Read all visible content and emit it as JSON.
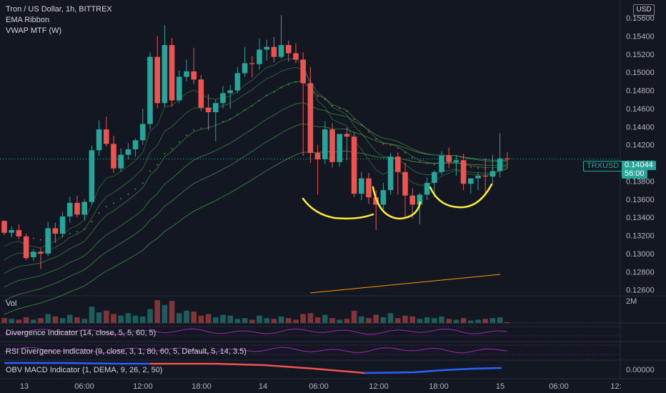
{
  "legend": {
    "title": "Tron / US Dollar, 1h, BITTREX",
    "line2": "EMA Ribbon",
    "line3": "VWAP MTF (W)"
  },
  "currency_button": "USD",
  "price_tag": {
    "symbol": "TRXUSD",
    "price": "0.14044",
    "countdown": "56:00"
  },
  "panes": {
    "vol_label": "Vol",
    "vol_scale": "2M",
    "div_label": "Divergence Indicator (14, close, 5, 5, 60, 5)",
    "rsi_label": "RSI Divergence Indicator (9, close, 3, 1, 80, 60, 5, Default, 5, 14, 3.5)",
    "obv_label": "OBV MACD Indicator (1, DEMA, 9, 26, 2, 50)",
    "obv_scale": "0.00000"
  },
  "colors": {
    "background": "#131722",
    "up": "#26a69a",
    "down": "#ef5350",
    "ema_ribbon": "#4caf50",
    "vwap": "#ff9800",
    "annotation": "#ffeb3b",
    "indicator_line": "#9c27b0",
    "obv_down": "#ef5350",
    "obv_up": "#2962ff",
    "price_tag_bg": "#26a69a"
  },
  "chart_data": {
    "type": "candlestick",
    "title": "Tron / US Dollar, 1h, BITTREX",
    "ylim": [
      0.1255,
      0.1575
    ],
    "y_ticks": [
      "0.15600",
      "0.15400",
      "0.15200",
      "0.15000",
      "0.14800",
      "0.14600",
      "0.14400",
      "0.14200",
      "0.14000",
      "0.13800",
      "0.13600",
      "0.13400",
      "0.13200",
      "0.13000",
      "0.12800",
      "0.12600"
    ],
    "x_ticks": [
      "13",
      "06:00",
      "12:00",
      "18:00",
      "14",
      "06:00",
      "12:00",
      "18:00",
      "15",
      "06:00",
      "12:"
    ],
    "series": [
      {
        "name": "OHLC",
        "values": [
          [
            0.1336,
            0.1337,
            0.1321,
            0.1323
          ],
          [
            0.1323,
            0.133,
            0.1318,
            0.1326
          ],
          [
            0.1326,
            0.1332,
            0.1316,
            0.1319
          ],
          [
            0.1319,
            0.1322,
            0.1293,
            0.1295
          ],
          [
            0.1296,
            0.1305,
            0.1292,
            0.1302
          ],
          [
            0.1302,
            0.1306,
            0.1283,
            0.13
          ],
          [
            0.13,
            0.1335,
            0.1297,
            0.1328
          ],
          [
            0.1328,
            0.1334,
            0.1312,
            0.1322
          ],
          [
            0.1322,
            0.1346,
            0.1318,
            0.1341
          ],
          [
            0.1341,
            0.1363,
            0.1334,
            0.1356
          ],
          [
            0.1356,
            0.1364,
            0.134,
            0.1343
          ],
          [
            0.1343,
            0.136,
            0.1337,
            0.1357
          ],
          [
            0.1357,
            0.1419,
            0.1354,
            0.1414
          ],
          [
            0.1414,
            0.1447,
            0.1408,
            0.1437
          ],
          [
            0.1437,
            0.1451,
            0.1418,
            0.1421
          ],
          [
            0.1421,
            0.143,
            0.1389,
            0.1394
          ],
          [
            0.1394,
            0.1416,
            0.139,
            0.1409
          ],
          [
            0.1409,
            0.1422,
            0.1404,
            0.1415
          ],
          [
            0.1415,
            0.1427,
            0.1407,
            0.1425
          ],
          [
            0.1425,
            0.146,
            0.142,
            0.1443
          ],
          [
            0.1443,
            0.1522,
            0.1437,
            0.1517
          ],
          [
            0.1517,
            0.154,
            0.146,
            0.1466
          ],
          [
            0.1466,
            0.1552,
            0.1462,
            0.153
          ],
          [
            0.153,
            0.1538,
            0.1462,
            0.1469
          ],
          [
            0.1469,
            0.1502,
            0.1466,
            0.1495
          ],
          [
            0.1495,
            0.1514,
            0.149,
            0.1501
          ],
          [
            0.1501,
            0.1527,
            0.1487,
            0.1492
          ],
          [
            0.1492,
            0.1497,
            0.1457,
            0.1461
          ],
          [
            0.1461,
            0.1476,
            0.1436,
            0.1456
          ],
          [
            0.1456,
            0.147,
            0.1424,
            0.1466
          ],
          [
            0.1466,
            0.1485,
            0.146,
            0.1477
          ],
          [
            0.1477,
            0.1486,
            0.146,
            0.148
          ],
          [
            0.148,
            0.1506,
            0.1477,
            0.1499
          ],
          [
            0.1499,
            0.1528,
            0.1495,
            0.151
          ],
          [
            0.151,
            0.1518,
            0.1494,
            0.1509
          ],
          [
            0.1509,
            0.1537,
            0.1503,
            0.1525
          ],
          [
            0.1525,
            0.1536,
            0.1513,
            0.1528
          ],
          [
            0.1528,
            0.1539,
            0.1511,
            0.1517
          ],
          [
            0.1517,
            0.1563,
            0.1515,
            0.153
          ],
          [
            0.153,
            0.1535,
            0.1512,
            0.1521
          ],
          [
            0.1521,
            0.1532,
            0.151,
            0.1514
          ],
          [
            0.1514,
            0.1522,
            0.1408,
            0.1488
          ],
          [
            0.1488,
            0.1506,
            0.14,
            0.1411
          ],
          [
            0.1411,
            0.142,
            0.1365,
            0.1404
          ],
          [
            0.1404,
            0.1446,
            0.1399,
            0.1437
          ],
          [
            0.1437,
            0.1444,
            0.1395,
            0.1401
          ],
          [
            0.1401,
            0.1427,
            0.1396,
            0.1432
          ],
          [
            0.1432,
            0.1439,
            0.1403,
            0.1429
          ],
          [
            0.1429,
            0.1434,
            0.1362,
            0.1366
          ],
          [
            0.1366,
            0.139,
            0.1359,
            0.1383
          ],
          [
            0.1383,
            0.1389,
            0.1355,
            0.1362
          ],
          [
            0.1362,
            0.137,
            0.1326,
            0.1354
          ],
          [
            0.1354,
            0.1378,
            0.1349,
            0.137
          ],
          [
            0.137,
            0.1411,
            0.1365,
            0.1407
          ],
          [
            0.1407,
            0.1412,
            0.1365,
            0.139
          ],
          [
            0.139,
            0.14,
            0.134,
            0.1364
          ],
          [
            0.1364,
            0.1372,
            0.1339,
            0.1354
          ],
          [
            0.1354,
            0.1367,
            0.1332,
            0.1365
          ],
          [
            0.1365,
            0.1384,
            0.1359,
            0.1378
          ],
          [
            0.1378,
            0.1392,
            0.1362,
            0.139
          ],
          [
            0.139,
            0.1413,
            0.1387,
            0.1408
          ],
          [
            0.1408,
            0.1417,
            0.1394,
            0.1401
          ],
          [
            0.1401,
            0.1409,
            0.1386,
            0.1403
          ],
          [
            0.1403,
            0.141,
            0.137,
            0.1377
          ],
          [
            0.1377,
            0.1382,
            0.1366,
            0.1383
          ],
          [
            0.1383,
            0.139,
            0.137,
            0.1386
          ],
          [
            0.1386,
            0.1405,
            0.1366,
            0.1385
          ],
          [
            0.1385,
            0.1409,
            0.1377,
            0.1391
          ],
          [
            0.1391,
            0.1433,
            0.1384,
            0.1405
          ],
          [
            0.1405,
            0.1412,
            0.1396,
            0.1404
          ]
        ]
      },
      {
        "name": "Vol",
        "values": [
          0.3,
          0.25,
          0.2,
          0.35,
          0.2,
          0.3,
          0.55,
          0.4,
          0.3,
          0.5,
          0.35,
          0.25,
          1.0,
          0.65,
          0.75,
          0.55,
          0.45,
          0.6,
          0.45,
          0.4,
          0.85,
          1.4,
          1.1,
          1.35,
          0.6,
          0.75,
          0.7,
          0.45,
          0.55,
          0.35,
          0.5,
          0.45,
          0.25,
          0.3,
          0.2,
          0.45,
          0.3,
          0.25,
          0.4,
          0.3,
          0.2,
          0.55,
          0.6,
          0.35,
          0.5,
          0.3,
          0.2,
          0.25,
          0.75,
          0.4,
          0.3,
          0.5,
          0.35,
          0.6,
          0.3,
          0.45,
          0.4,
          0.25,
          0.35,
          0.3,
          0.4,
          0.25,
          0.2,
          0.3,
          0.15,
          0.2,
          0.25,
          0.3,
          0.35,
          0.05
        ]
      }
    ]
  }
}
